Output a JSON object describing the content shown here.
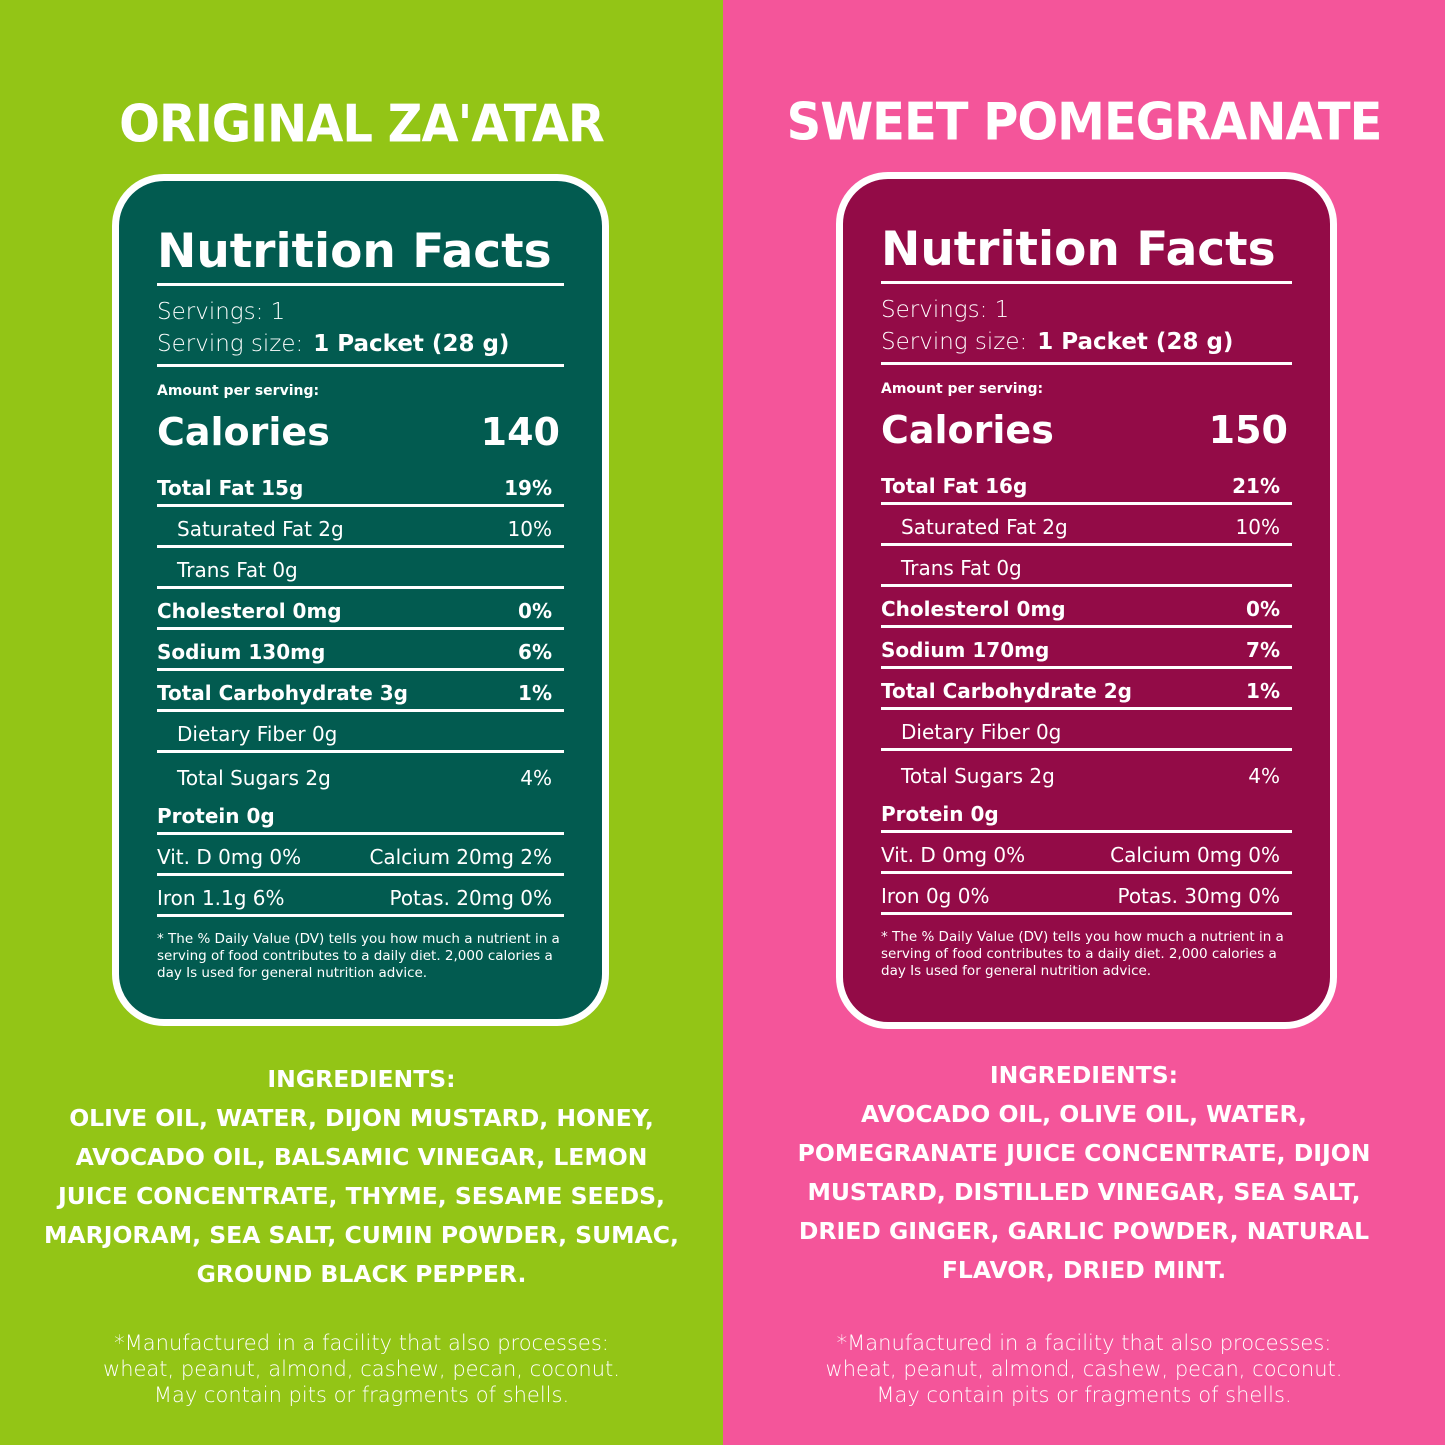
{
  "products": [
    {
      "title": "ORIGINAL ZA'ATAR",
      "colors": {
        "background": "#93c516",
        "card": "#025b50"
      },
      "nutrition": {
        "heading": "Nutrition Facts",
        "servings": "Servings: 1",
        "serving_size_label": "Serving size:",
        "serving_size_value": "1 Packet (28 g)",
        "amount_label": "Amount per serving:",
        "calories_label": "Calories",
        "calories_value": "140",
        "rows": [
          {
            "label": "Total Fat 15g",
            "dv": "19%"
          },
          {
            "label": "Saturated Fat 2g",
            "dv": "10%"
          },
          {
            "label": "Trans Fat 0g",
            "dv": ""
          },
          {
            "label": "Cholesterol 0mg",
            "dv": "0%"
          },
          {
            "label": "Sodium 130mg",
            "dv": "6%"
          },
          {
            "label": "Total Carbohydrate 3g",
            "dv": "1%"
          },
          {
            "label": "Dietary Fiber 0g",
            "dv": ""
          },
          {
            "label": "Total Sugars 2g",
            "dv": "4%"
          },
          {
            "label": "Protein 0g",
            "dv": ""
          }
        ],
        "micro": [
          {
            "a": "Vit. D 0mg 0%",
            "b": "Calcium 20mg 2%"
          },
          {
            "a": "Iron 1.1g 6%",
            "b": "Potas. 20mg 0%"
          }
        ],
        "disclaimer": "* The % Daily Value (DV) tells you how much a nutrient in a serving of food contributes to a daily diet. 2,000 calories a day Is used for general nutrition advice."
      },
      "ingredients_heading": "INGREDIENTS:",
      "ingredients": "OLIVE OIL, WATER, DIJON MUSTARD, HONEY, AVOCADO OIL, BALSAMIC VINEGAR, LEMON JUICE CONCENTRATE, THYME, SESAME SEEDS, MARJORAM, SEA SALT, CUMIN POWDER, SUMAC, GROUND BLACK PEPPER.",
      "facility": [
        "*Manufactured in a facility that also processes:",
        "wheat, peanut, almond, cashew, pecan, coconut.",
        "May contain pits or fragments of shells."
      ]
    },
    {
      "title": "SWEET POMEGRANATE",
      "colors": {
        "background": "#f4559a",
        "card": "#930b47"
      },
      "nutrition": {
        "heading": "Nutrition Facts",
        "servings": "Servings: 1",
        "serving_size_label": "Serving size:",
        "serving_size_value": "1 Packet (28 g)",
        "amount_label": "Amount per serving:",
        "calories_label": "Calories",
        "calories_value": "150",
        "rows": [
          {
            "label": "Total Fat 16g",
            "dv": "21%"
          },
          {
            "label": "Saturated Fat 2g",
            "dv": "10%"
          },
          {
            "label": "Trans Fat 0g",
            "dv": ""
          },
          {
            "label": "Cholesterol 0mg",
            "dv": "0%"
          },
          {
            "label": "Sodium 170mg",
            "dv": "7%"
          },
          {
            "label": "Total Carbohydrate 2g",
            "dv": "1%"
          },
          {
            "label": "Dietary Fiber 0g",
            "dv": ""
          },
          {
            "label": "Total Sugars 2g",
            "dv": "4%"
          },
          {
            "label": "Protein 0g",
            "dv": ""
          }
        ],
        "micro": [
          {
            "a": "Vit. D 0mg 0%",
            "b": "Calcium 0mg 0%"
          },
          {
            "a": "Iron 0g 0%",
            "b": "Potas. 30mg 0%"
          }
        ],
        "disclaimer": "* The % Daily Value (DV) tells you how much a nutrient in a serving of food contributes to a daily diet. 2,000 calories a day Is used for general nutrition advice."
      },
      "ingredients_heading": "INGREDIENTS:",
      "ingredients": "AVOCADO OIL, OLIVE OIL, WATER, POMEGRANATE JUICE CONCENTRATE, DIJON MUSTARD, DISTILLED VINEGAR, SEA SALT, DRIED GINGER, GARLIC POWDER, NATURAL FLAVOR, DRIED MINT.",
      "facility": [
        "*Manufactured in a facility that also processes:",
        "wheat, peanut, almond, cashew, pecan, coconut.",
        "May contain pits or fragments of shells."
      ]
    }
  ]
}
